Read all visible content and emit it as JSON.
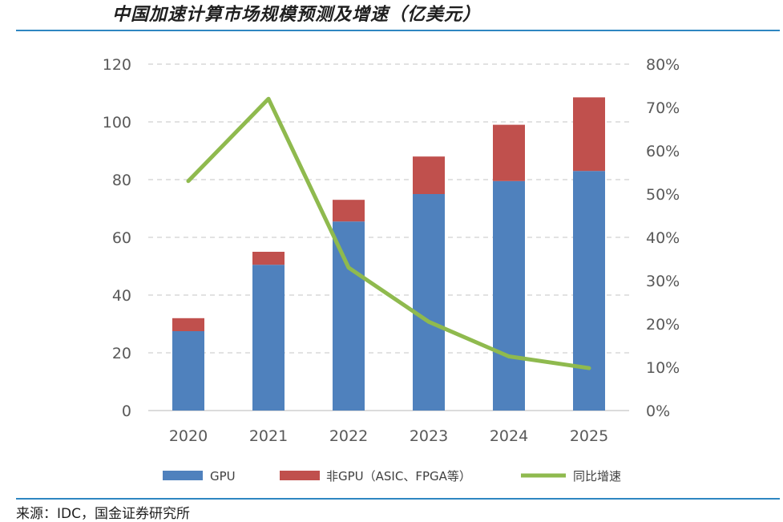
{
  "page": {
    "title": "中国加速计算市场规模预测及增速（亿美元）",
    "source": "来源：IDC，国金证券研究所"
  },
  "colors": {
    "gpu": "#4f81bd",
    "non_gpu": "#c0504d",
    "growth": "#8fba4e",
    "grid": "#d9d9d9",
    "rule": "#2e86c1"
  },
  "chart_data": {
    "type": "bar",
    "stacked": true,
    "categories": [
      "2020",
      "2021",
      "2022",
      "2023",
      "2024",
      "2025"
    ],
    "series": [
      {
        "name": "GPU",
        "type": "bar",
        "axis": "left",
        "values": [
          27.5,
          50.5,
          65.5,
          75,
          79.5,
          83
        ]
      },
      {
        "name": "非GPU（ASIC、FPGA等）",
        "type": "bar",
        "axis": "left",
        "values": [
          4.5,
          4.5,
          7.5,
          13,
          19.5,
          25.5
        ]
      },
      {
        "name": "同比增速",
        "type": "line",
        "axis": "right",
        "values": [
          0.53,
          0.72,
          0.33,
          0.205,
          0.125,
          0.098
        ]
      }
    ],
    "y_left": {
      "min": 0,
      "max": 120,
      "ticks": [
        "0",
        "20",
        "40",
        "60",
        "80",
        "100",
        "120"
      ]
    },
    "y_right": {
      "min": 0,
      "max": 0.8,
      "ticks": [
        "0%",
        "10%",
        "20%",
        "30%",
        "40%",
        "50%",
        "60%",
        "70%",
        "80%"
      ]
    },
    "grid": true,
    "legend": {
      "position": "bottom",
      "labels": [
        "GPU",
        "非GPU（ASIC、FPGA等）",
        "同比增速"
      ]
    }
  }
}
